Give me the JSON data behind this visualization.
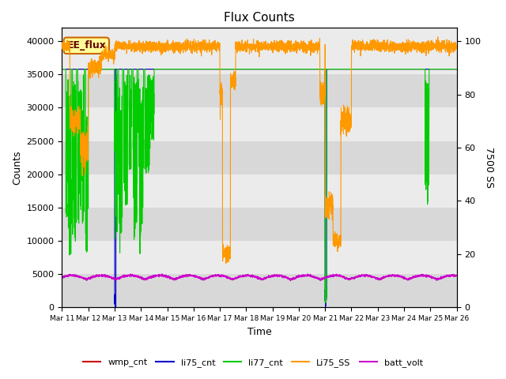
{
  "title": "Flux Counts",
  "xlabel": "Time",
  "ylabel_left": "Counts",
  "ylabel_right": "7500 SS",
  "ylim_left": [
    0,
    42000
  ],
  "ylim_right": [
    0,
    105
  ],
  "xtick_labels": [
    "Mar 11",
    "Mar 12",
    "Mar 13",
    "Mar 14",
    "Mar 15",
    "Mar 16",
    "Mar 17",
    "Mar 18",
    "Mar 19",
    "Mar 20",
    "Mar 21",
    "Mar 22",
    "Mar 23",
    "Mar 24",
    "Mar 25",
    "Mar 26"
  ],
  "colors": {
    "wmp_cnt": "#cc0000",
    "li75_cnt": "#0000cc",
    "li77_cnt": "#00cc00",
    "Li75_SS": "#ff9900",
    "batt_volt": "#cc00cc",
    "background_dark": "#d8d8d8",
    "background_light": "#ebebeb",
    "annotation_bg": "#ffff99",
    "annotation_border": "#cc6600"
  },
  "ee_flux_annotation": "EE_flux",
  "yticks_left": [
    0,
    5000,
    10000,
    15000,
    20000,
    25000,
    30000,
    35000,
    40000
  ],
  "yticks_right": [
    0,
    20,
    40,
    60,
    80,
    100
  ],
  "figsize": [
    6.4,
    4.8
  ],
  "dpi": 100
}
